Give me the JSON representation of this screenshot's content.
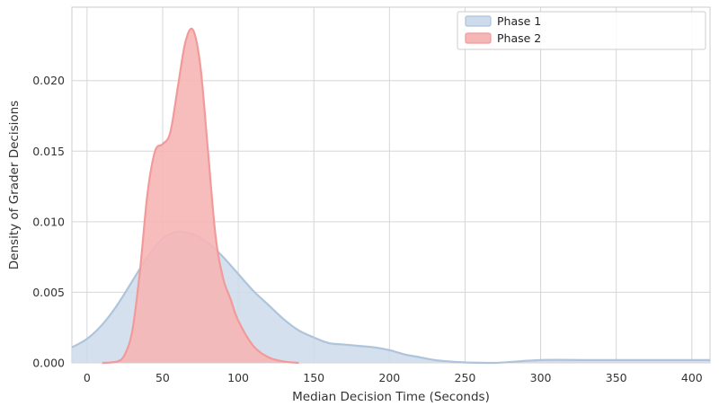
{
  "chart_data": {
    "type": "area",
    "xlabel": "Median Decision Time (Seconds)",
    "ylabel": "Density of Grader Decisions",
    "xlim": [
      -10,
      412
    ],
    "ylim": [
      0,
      0.0252
    ],
    "xticks": [
      0,
      50,
      100,
      150,
      200,
      250,
      300,
      350,
      400
    ],
    "yticks": [
      0.0,
      0.005,
      0.01,
      0.015,
      0.02
    ],
    "ytick_labels": [
      "0.000",
      "0.005",
      "0.010",
      "0.015",
      "0.020"
    ],
    "grid": true,
    "legend_position": "top-right",
    "series": [
      {
        "name": "Phase 1",
        "fill_color": "#cddbea",
        "line_color": "#aec4db",
        "x": [
          -10,
          0,
          10,
          20,
          30,
          40,
          50,
          60,
          70,
          80,
          90,
          100,
          110,
          120,
          130,
          140,
          150,
          160,
          170,
          180,
          190,
          200,
          210,
          220,
          230,
          240,
          250,
          270,
          300,
          330,
          350,
          370,
          390,
          412
        ],
        "y": [
          0.0011,
          0.0017,
          0.0027,
          0.0041,
          0.0058,
          0.0075,
          0.0088,
          0.0093,
          0.0091,
          0.0085,
          0.0075,
          0.0063,
          0.0051,
          0.0041,
          0.0031,
          0.0023,
          0.0018,
          0.0014,
          0.0013,
          0.0012,
          0.0011,
          0.0009,
          0.0006,
          0.0004,
          0.0002,
          0.0001,
          3e-05,
          0.0,
          0.0002,
          0.0002,
          0.0002,
          0.0002,
          0.0002,
          0.0002
        ]
      },
      {
        "name": "Phase 2",
        "fill_color": "#f6b6b6",
        "line_color": "#f29a9a",
        "x": [
          10,
          20,
          25,
          30,
          35,
          40,
          45,
          50,
          55,
          60,
          65,
          70,
          75,
          80,
          85,
          90,
          95,
          100,
          110,
          120,
          130,
          140
        ],
        "y": [
          0.0,
          0.0001,
          0.0006,
          0.0023,
          0.0065,
          0.012,
          0.015,
          0.0155,
          0.0163,
          0.0195,
          0.0227,
          0.0236,
          0.021,
          0.015,
          0.009,
          0.006,
          0.0045,
          0.003,
          0.0012,
          0.0004,
          0.0001,
          0.0
        ]
      }
    ]
  }
}
